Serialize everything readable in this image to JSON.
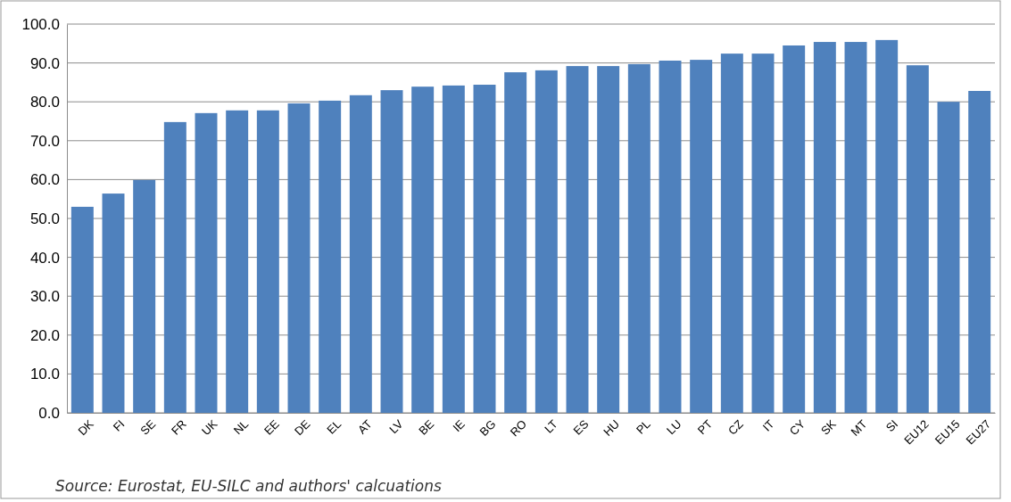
{
  "chart_data": {
    "type": "bar",
    "categories": [
      "DK",
      "FI",
      "SE",
      "FR",
      "UK",
      "NL",
      "EE",
      "DE",
      "EL",
      "AT",
      "LV",
      "BE",
      "IE",
      "BG",
      "RO",
      "LT",
      "ES",
      "HU",
      "PL",
      "LU",
      "PT",
      "CZ",
      "IT",
      "CY",
      "SK",
      "MT",
      "SI",
      "EU12",
      "EU15",
      "EU27"
    ],
    "values": [
      53.0,
      56.4,
      59.9,
      74.8,
      77.1,
      77.8,
      77.8,
      79.6,
      80.3,
      81.7,
      83.0,
      83.9,
      84.2,
      84.4,
      87.6,
      88.1,
      89.2,
      89.2,
      89.7,
      90.6,
      90.8,
      92.4,
      92.4,
      94.5,
      95.4,
      95.4,
      95.9,
      89.4,
      80.0,
      82.8
    ],
    "color": "#4f81bd",
    "ylim": [
      0,
      100
    ],
    "yticks": [
      {
        "value": 0,
        "label": "0.0"
      },
      {
        "value": 10,
        "label": "10.0"
      },
      {
        "value": 20,
        "label": "20.0"
      },
      {
        "value": 30,
        "label": "30.0"
      },
      {
        "value": 40,
        "label": "40.0"
      },
      {
        "value": 50,
        "label": "50.0"
      },
      {
        "value": 60,
        "label": "60.0"
      },
      {
        "value": 70,
        "label": "70.0"
      },
      {
        "value": 80,
        "label": "80.0"
      },
      {
        "value": 90,
        "label": "90.0"
      },
      {
        "value": 100,
        "label": "100.0"
      }
    ],
    "grid": "y",
    "annotations": [
      "Source: Eurostat, EU-SILC and authors' calcuations"
    ]
  }
}
